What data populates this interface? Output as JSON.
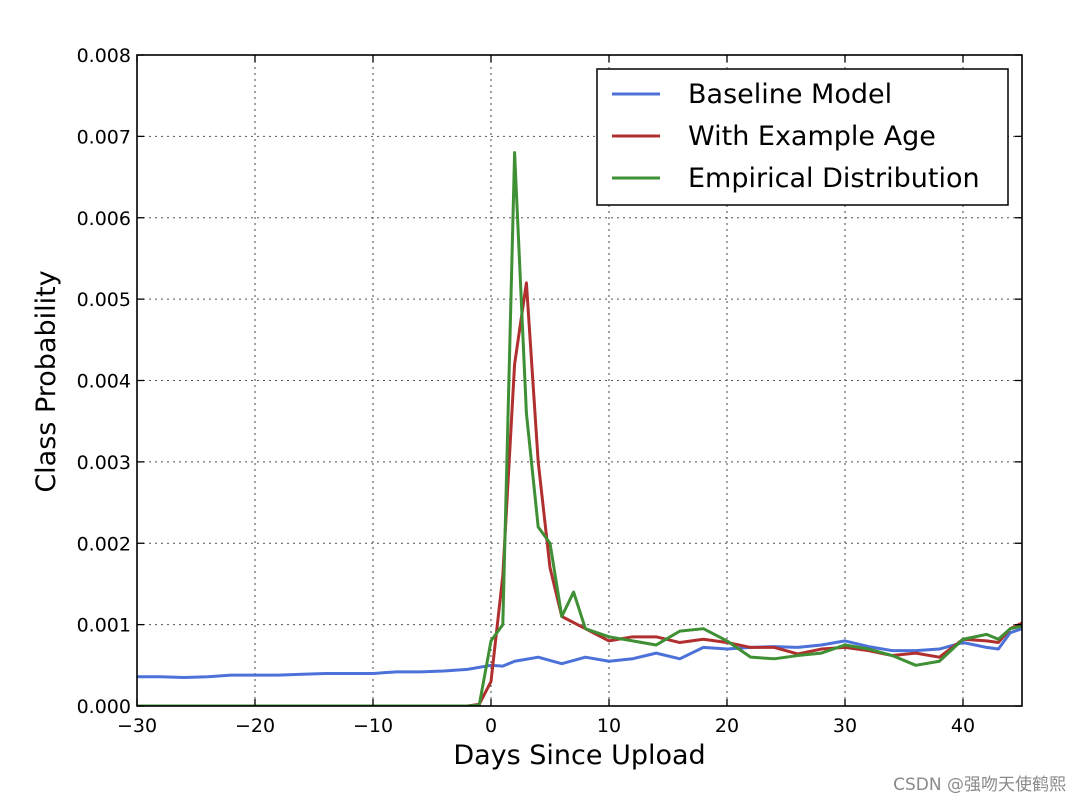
{
  "watermark": "CSDN @强吻天使鹤熙",
  "colors": {
    "baseline": "#4c72d9",
    "example_age": "#b0302f",
    "empirical": "#3f8f35",
    "grid": "#555555",
    "axes": "#000000"
  },
  "chart_data": {
    "type": "line",
    "title": "",
    "xlabel": "Days Since Upload",
    "ylabel": "Class Probability",
    "xlim": [
      -30,
      45
    ],
    "ylim": [
      0,
      0.008
    ],
    "x_ticks": [
      -30,
      -20,
      -10,
      0,
      10,
      20,
      30,
      40
    ],
    "x_tick_labels": [
      "−30",
      "−20",
      "−10",
      "0",
      "10",
      "20",
      "30",
      "40"
    ],
    "y_ticks": [
      0,
      0.001,
      0.002,
      0.003,
      0.004,
      0.005,
      0.006,
      0.007,
      0.008
    ],
    "y_tick_labels": [
      "0.000",
      "0.001",
      "0.002",
      "0.003",
      "0.004",
      "0.005",
      "0.006",
      "0.007",
      "0.008"
    ],
    "grid": true,
    "legend_position": "top-right",
    "series": [
      {
        "name": "Baseline Model",
        "color": "#4c72d9",
        "points": [
          [
            -30,
            0.00036
          ],
          [
            -28,
            0.00036
          ],
          [
            -26,
            0.00035
          ],
          [
            -24,
            0.00036
          ],
          [
            -22,
            0.00038
          ],
          [
            -20,
            0.00038
          ],
          [
            -18,
            0.00038
          ],
          [
            -16,
            0.00039
          ],
          [
            -14,
            0.0004
          ],
          [
            -12,
            0.0004
          ],
          [
            -10,
            0.0004
          ],
          [
            -8,
            0.00042
          ],
          [
            -6,
            0.00042
          ],
          [
            -4,
            0.00043
          ],
          [
            -2,
            0.00045
          ],
          [
            0,
            0.0005
          ],
          [
            1,
            0.00049
          ],
          [
            2,
            0.00055
          ],
          [
            4,
            0.0006
          ],
          [
            6,
            0.00052
          ],
          [
            8,
            0.0006
          ],
          [
            10,
            0.00055
          ],
          [
            12,
            0.00058
          ],
          [
            14,
            0.00065
          ],
          [
            16,
            0.00058
          ],
          [
            18,
            0.00072
          ],
          [
            20,
            0.0007
          ],
          [
            22,
            0.00072
          ],
          [
            24,
            0.00073
          ],
          [
            26,
            0.00072
          ],
          [
            28,
            0.00075
          ],
          [
            30,
            0.0008
          ],
          [
            32,
            0.00073
          ],
          [
            34,
            0.00068
          ],
          [
            36,
            0.00068
          ],
          [
            38,
            0.0007
          ],
          [
            40,
            0.00078
          ],
          [
            42,
            0.00072
          ],
          [
            43,
            0.0007
          ],
          [
            44,
            0.0009
          ],
          [
            45,
            0.00095
          ]
        ]
      },
      {
        "name": "With Example Age",
        "color": "#b0302f",
        "points": [
          [
            -30,
            0.0
          ],
          [
            -20,
            0.0
          ],
          [
            -10,
            0.0
          ],
          [
            -2,
            0.0
          ],
          [
            -1,
            2e-05
          ],
          [
            0,
            0.0003
          ],
          [
            1,
            0.0016
          ],
          [
            2,
            0.0042
          ],
          [
            3,
            0.0052
          ],
          [
            4,
            0.003
          ],
          [
            5,
            0.0017
          ],
          [
            6,
            0.0011
          ],
          [
            8,
            0.00095
          ],
          [
            10,
            0.0008
          ],
          [
            12,
            0.00085
          ],
          [
            14,
            0.00085
          ],
          [
            16,
            0.00078
          ],
          [
            18,
            0.00082
          ],
          [
            20,
            0.00078
          ],
          [
            22,
            0.00072
          ],
          [
            24,
            0.00072
          ],
          [
            26,
            0.00064
          ],
          [
            28,
            0.0007
          ],
          [
            30,
            0.00072
          ],
          [
            32,
            0.00068
          ],
          [
            34,
            0.00062
          ],
          [
            36,
            0.00065
          ],
          [
            38,
            0.0006
          ],
          [
            40,
            0.00082
          ],
          [
            42,
            0.0008
          ],
          [
            43,
            0.00078
          ],
          [
            44,
            0.00095
          ],
          [
            45,
            0.00102
          ]
        ]
      },
      {
        "name": "Empirical Distribution",
        "color": "#3f8f35",
        "points": [
          [
            -30,
            0.0
          ],
          [
            -20,
            0.0
          ],
          [
            -10,
            0.0
          ],
          [
            -2,
            0.0
          ],
          [
            -1,
            1e-05
          ],
          [
            0,
            0.0008
          ],
          [
            1,
            0.001
          ],
          [
            2,
            0.0068
          ],
          [
            3,
            0.0036
          ],
          [
            4,
            0.0022
          ],
          [
            5,
            0.002
          ],
          [
            6,
            0.0011
          ],
          [
            7,
            0.0014
          ],
          [
            8,
            0.00095
          ],
          [
            10,
            0.00085
          ],
          [
            12,
            0.0008
          ],
          [
            14,
            0.00075
          ],
          [
            16,
            0.00092
          ],
          [
            18,
            0.00095
          ],
          [
            20,
            0.0008
          ],
          [
            22,
            0.0006
          ],
          [
            24,
            0.00058
          ],
          [
            26,
            0.00062
          ],
          [
            28,
            0.00065
          ],
          [
            30,
            0.00075
          ],
          [
            32,
            0.0007
          ],
          [
            34,
            0.00062
          ],
          [
            36,
            0.0005
          ],
          [
            38,
            0.00055
          ],
          [
            40,
            0.00082
          ],
          [
            42,
            0.00088
          ],
          [
            43,
            0.00082
          ],
          [
            44,
            0.00095
          ],
          [
            45,
            0.00098
          ]
        ]
      }
    ]
  }
}
